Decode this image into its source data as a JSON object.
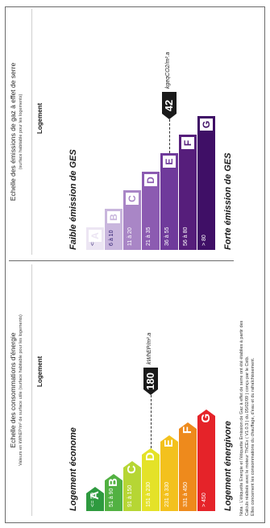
{
  "energy": {
    "title": "Echelle des consommations d'énergie",
    "subtitle": "Valeurs en kWhEP/m² de surface utile (surface habitable pour les logements)",
    "logement": "Logement",
    "top_caption": "Logement économe",
    "bottom_caption": "Logement énergivore",
    "value": "180",
    "unit": "kWhEP/m².a",
    "bars": [
      {
        "letter": "A",
        "range": "<= 50",
        "color": "#2e9a3f"
      },
      {
        "letter": "B",
        "range": "51 à 90",
        "color": "#52b142"
      },
      {
        "letter": "C",
        "range": "91 à 150",
        "color": "#b6d634"
      },
      {
        "letter": "D",
        "range": "151 à 230",
        "color": "#e4e228"
      },
      {
        "letter": "E",
        "range": "231 à 330",
        "color": "#f3c11d"
      },
      {
        "letter": "F",
        "range": "331 à 450",
        "color": "#ee8a1c"
      },
      {
        "letter": "G",
        "range": "> 450",
        "color": "#e52329"
      }
    ]
  },
  "ges": {
    "title": "Echelle des émissions de gaz à effet de serre",
    "subtitle": "(surface habitable pour les logements)",
    "logement": "Logement",
    "top_caption": "Faible émission de GES",
    "bottom_caption": "Forte émission de GES",
    "value": "42",
    "unit": "kgeqCO2/m².a",
    "bars": [
      {
        "letter": "A",
        "range": "<= 5",
        "color": "#ece5f3"
      },
      {
        "letter": "B",
        "range": "6 à 10",
        "color": "#c9b6dd"
      },
      {
        "letter": "C",
        "range": "11 à 20",
        "color": "#a986c6"
      },
      {
        "letter": "D",
        "range": "21 à 35",
        "color": "#8c5bb1"
      },
      {
        "letter": "E",
        "range": "36 à 55",
        "color": "#6f3a9b"
      },
      {
        "letter": "F",
        "range": "56 à 80",
        "color": "#561e7b"
      },
      {
        "letter": "G",
        "range": "> 80",
        "color": "#3f0f66"
      }
    ]
  },
  "notes": [
    "Nota : L'étiquette Energie et l'étiquette Emission de Gaz à effet de serre ont été établies à partir des",
    "Calculs réalisés avec le moteur ThCEx ( V1.0.3 ) du 05/02/09 ) conçu par le Cstb.",
    "Elles concernent les consommations du chauffage, d'eau et du rafraîchissement."
  ]
}
